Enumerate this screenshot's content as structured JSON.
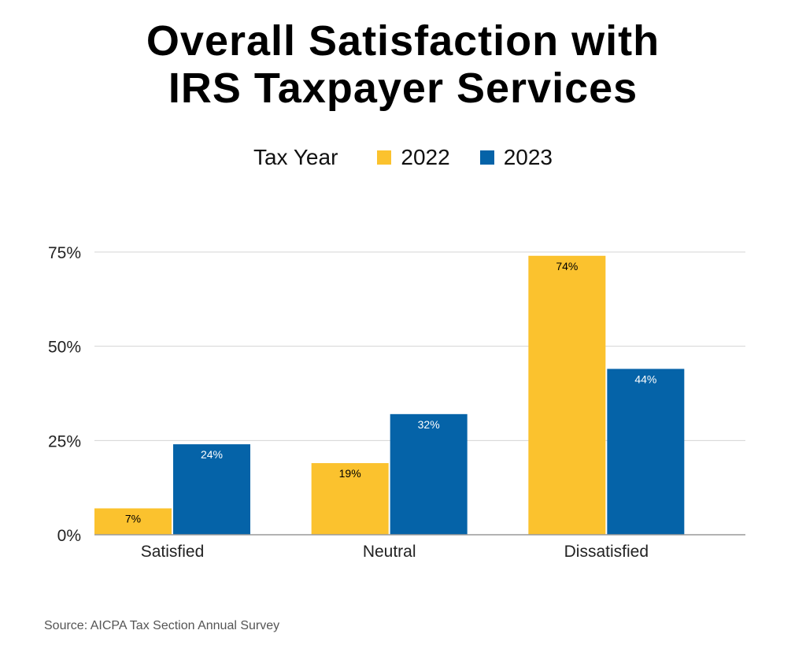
{
  "chart_data": {
    "type": "bar",
    "title": "Overall Satisfaction with IRS Taxpayer Services",
    "title_lines": [
      "Overall Satisfaction with",
      "IRS Taxpayer Services"
    ],
    "legend_title": "Tax Year",
    "categories": [
      "Satisfied",
      "Neutral",
      "Dissatisfied"
    ],
    "series": [
      {
        "name": "2022",
        "values": [
          7,
          19,
          74
        ],
        "labels": [
          "7%",
          "19%",
          "74%"
        ],
        "color": "#FBC22E",
        "label_color": "#000000"
      },
      {
        "name": "2023",
        "values": [
          24,
          32,
          44
        ],
        "labels": [
          "24%",
          "32%",
          "44%"
        ],
        "color": "#0563A8",
        "label_color": "#ffffff"
      }
    ],
    "yticks": [
      0,
      25,
      50,
      75
    ],
    "ytick_labels": [
      "0%",
      "25%",
      "50%",
      "75%"
    ],
    "ylim": [
      0,
      75
    ],
    "xlabel": "",
    "ylabel": "",
    "grid": true,
    "legend_position": "top-center"
  },
  "source": "Source: AICPA Tax Section Annual Survey"
}
